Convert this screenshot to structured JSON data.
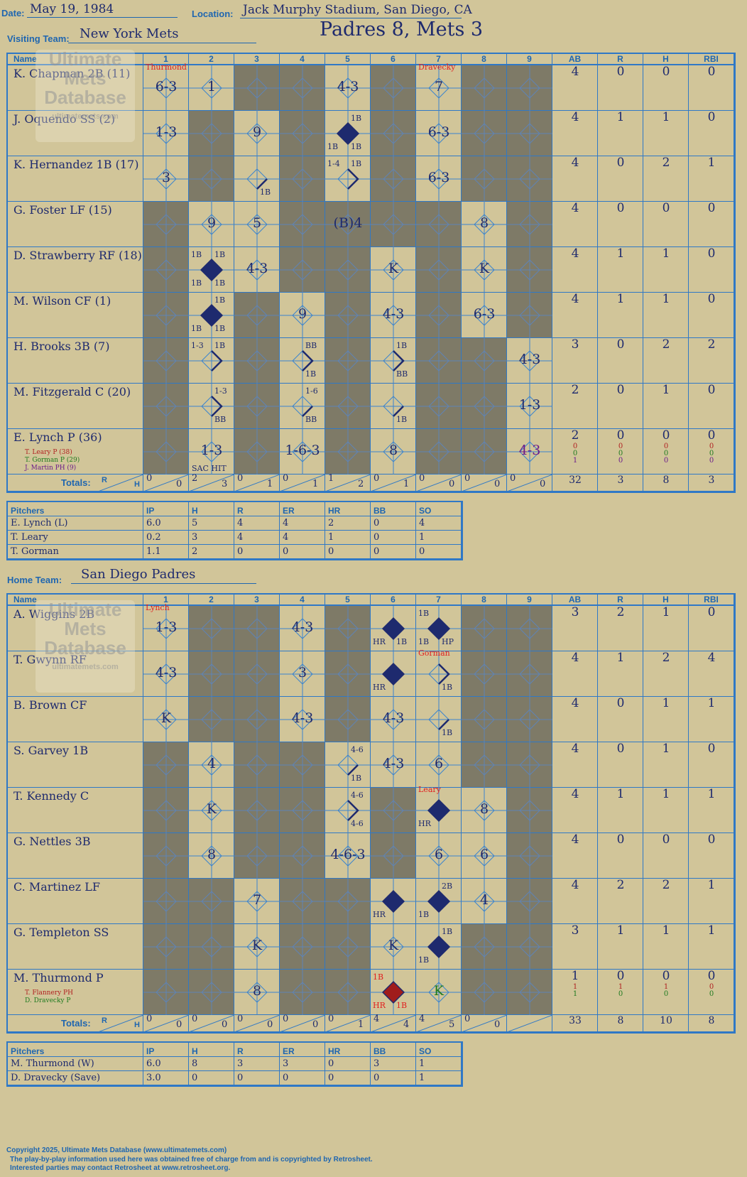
{
  "header": {
    "date_label": "Date:",
    "date": "May 19, 1984",
    "location_label": "Location:",
    "location": "Jack Murphy Stadium, San Diego, CA",
    "visiting_label": "Visiting Team:",
    "visiting_team": "New York Mets",
    "score_title": "Padres 8, Mets 3",
    "home_label": "Home Team:",
    "home_team": "San Diego Padres"
  },
  "columns": {
    "name": "Name",
    "innings": [
      "1",
      "2",
      "3",
      "4",
      "5",
      "6",
      "7",
      "8",
      "9"
    ],
    "ab": "AB",
    "r": "R",
    "h": "H",
    "rbi": "RBI"
  },
  "totals_label": "Totals:",
  "rh_r": "R",
  "rh_h": "H",
  "visitors": {
    "rows": [
      {
        "name": "K. Chapman 2B (11)",
        "shade": [
          0,
          0,
          1,
          1,
          0,
          1,
          0,
          1,
          1
        ],
        "ab": "4",
        "r": "0",
        "h": "0",
        "rbi": "0"
      },
      {
        "name": "J. Oquendo SS (2)",
        "shade": [
          0,
          1,
          0,
          1,
          0,
          1,
          0,
          1,
          1
        ],
        "ab": "4",
        "r": "1",
        "h": "1",
        "rbi": "0"
      },
      {
        "name": "K. Hernandez 1B (17)",
        "shade": [
          0,
          1,
          0,
          1,
          0,
          1,
          0,
          1,
          1
        ],
        "ab": "4",
        "r": "0",
        "h": "2",
        "rbi": "1"
      },
      {
        "name": "G. Foster LF (15)",
        "shade": [
          1,
          0,
          0,
          1,
          1,
          1,
          1,
          0,
          1
        ],
        "ab": "4",
        "r": "0",
        "h": "0",
        "rbi": "0"
      },
      {
        "name": "D. Strawberry RF (18)",
        "shade": [
          1,
          0,
          0,
          1,
          1,
          0,
          1,
          0,
          1
        ],
        "ab": "4",
        "r": "1",
        "h": "1",
        "rbi": "0"
      },
      {
        "name": "M. Wilson CF (1)",
        "shade": [
          1,
          0,
          1,
          0,
          1,
          0,
          1,
          0,
          1
        ],
        "ab": "4",
        "r": "1",
        "h": "1",
        "rbi": "0"
      },
      {
        "name": "H. Brooks 3B (7)",
        "shade": [
          1,
          0,
          1,
          0,
          1,
          0,
          1,
          1,
          0
        ],
        "ab": "3",
        "r": "0",
        "h": "2",
        "rbi": "2"
      },
      {
        "name": "M. Fitzgerald C (20)",
        "shade": [
          1,
          0,
          1,
          0,
          1,
          0,
          1,
          1,
          0
        ],
        "ab": "2",
        "r": "0",
        "h": "1",
        "rbi": "0"
      },
      {
        "name": "E. Lynch P (36)",
        "shade": [
          1,
          0,
          1,
          0,
          1,
          0,
          1,
          1,
          0
        ],
        "ab": "2",
        "r": "0",
        "h": "0",
        "rbi": "0",
        "subs": [
          {
            "text": "T. Leary P (38)",
            "color": "#b02020",
            "ab": "0",
            "r": "0",
            "h": "0",
            "rbi": "0"
          },
          {
            "text": "T. Gorman P (29)",
            "color": "#1f7a1f",
            "ab": "0",
            "r": "0",
            "h": "0",
            "rbi": "0"
          },
          {
            "text": "J. Martin PH (9)",
            "color": "#6a1b8a",
            "ab": "1",
            "r": "0",
            "h": "0",
            "rbi": "0"
          }
        ]
      }
    ],
    "plays": [
      {
        "row": 0,
        "inn": 0,
        "text": "6-3"
      },
      {
        "row": 0,
        "inn": 1,
        "text": "1"
      },
      {
        "row": 0,
        "inn": 4,
        "text": "4-3"
      },
      {
        "row": 0,
        "inn": 6,
        "text": "7"
      },
      {
        "row": 1,
        "inn": 0,
        "text": "1-3"
      },
      {
        "row": 1,
        "inn": 2,
        "text": "9"
      },
      {
        "row": 1,
        "inn": 6,
        "text": "6-3"
      },
      {
        "row": 2,
        "inn": 0,
        "text": "3"
      },
      {
        "row": 2,
        "inn": 6,
        "text": "6-3"
      },
      {
        "row": 3,
        "inn": 1,
        "text": "9"
      },
      {
        "row": 3,
        "inn": 2,
        "text": "5"
      },
      {
        "row": 3,
        "inn": 4,
        "text": "(B)4"
      },
      {
        "row": 3,
        "inn": 7,
        "text": "8"
      },
      {
        "row": 4,
        "inn": 2,
        "text": "4-3"
      },
      {
        "row": 4,
        "inn": 5,
        "text": "K"
      },
      {
        "row": 4,
        "inn": 7,
        "text": "K"
      },
      {
        "row": 5,
        "inn": 3,
        "text": "9"
      },
      {
        "row": 5,
        "inn": 5,
        "text": "4-3"
      },
      {
        "row": 5,
        "inn": 7,
        "text": "6-3"
      },
      {
        "row": 6,
        "inn": 8,
        "text": "4-3"
      },
      {
        "row": 7,
        "inn": 8,
        "text": "1-3"
      },
      {
        "row": 8,
        "inn": 1,
        "text": "1-3"
      },
      {
        "row": 8,
        "inn": 3,
        "text": "1-6-3"
      },
      {
        "row": 8,
        "inn": 5,
        "text": "8"
      },
      {
        "row": 8,
        "inn": 8,
        "text": "4-3",
        "color": "#6a1b8a"
      }
    ],
    "diamonds": [
      {
        "row": 1,
        "inn": 4,
        "fill": "#1e2a6e"
      },
      {
        "row": 4,
        "inn": 1,
        "fill": "#1e2a6e"
      },
      {
        "row": 5,
        "inn": 1,
        "fill": "#1e2a6e"
      }
    ],
    "paths": [
      {
        "row": 2,
        "inn": 2,
        "seg": "first"
      },
      {
        "row": 2,
        "inn": 4,
        "seg": "second"
      },
      {
        "row": 6,
        "inn": 1,
        "seg": "second"
      },
      {
        "row": 6,
        "inn": 3,
        "seg": "second"
      },
      {
        "row": 6,
        "inn": 5,
        "seg": "second"
      },
      {
        "row": 7,
        "inn": 1,
        "seg": "second"
      },
      {
        "row": 7,
        "inn": 3,
        "seg": "first"
      },
      {
        "row": 7,
        "inn": 5,
        "seg": "first"
      }
    ],
    "marks": [
      {
        "row": 0,
        "inn": 0,
        "pos": "top",
        "text": "Thurmond",
        "red": true
      },
      {
        "row": 0,
        "inn": 6,
        "pos": "top",
        "text": "Dravecky",
        "red": true
      },
      {
        "row": 1,
        "inn": 4,
        "pos": "tr",
        "text": "1B"
      },
      {
        "row": 1,
        "inn": 4,
        "pos": "bl",
        "text": "1B"
      },
      {
        "row": 1,
        "inn": 4,
        "pos": "br",
        "text": "1B"
      },
      {
        "row": 2,
        "inn": 2,
        "pos": "br",
        "text": "1B"
      },
      {
        "row": 2,
        "inn": 4,
        "pos": "tl",
        "text": "1-4"
      },
      {
        "row": 2,
        "inn": 4,
        "pos": "tr",
        "text": "1B"
      },
      {
        "row": 4,
        "inn": 1,
        "pos": "tl",
        "text": "1B"
      },
      {
        "row": 4,
        "inn": 1,
        "pos": "tr",
        "text": "1B"
      },
      {
        "row": 4,
        "inn": 1,
        "pos": "bl",
        "text": "1B"
      },
      {
        "row": 4,
        "inn": 1,
        "pos": "br",
        "text": "1B"
      },
      {
        "row": 5,
        "inn": 1,
        "pos": "tr",
        "text": "1B"
      },
      {
        "row": 5,
        "inn": 1,
        "pos": "bl",
        "text": "1B"
      },
      {
        "row": 5,
        "inn": 1,
        "pos": "br",
        "text": "1B"
      },
      {
        "row": 6,
        "inn": 1,
        "pos": "tl",
        "text": "1-3"
      },
      {
        "row": 6,
        "inn": 1,
        "pos": "tr",
        "text": "1B"
      },
      {
        "row": 6,
        "inn": 3,
        "pos": "tr",
        "text": "BB"
      },
      {
        "row": 6,
        "inn": 3,
        "pos": "br",
        "text": "1B"
      },
      {
        "row": 6,
        "inn": 5,
        "pos": "tr",
        "text": "1B"
      },
      {
        "row": 6,
        "inn": 5,
        "pos": "br",
        "text": "BB"
      },
      {
        "row": 7,
        "inn": 1,
        "pos": "tr",
        "text": "1-3"
      },
      {
        "row": 7,
        "inn": 1,
        "pos": "br",
        "text": "BB"
      },
      {
        "row": 7,
        "inn": 3,
        "pos": "tr",
        "text": "1-6"
      },
      {
        "row": 7,
        "inn": 3,
        "pos": "br",
        "text": "BB"
      },
      {
        "row": 7,
        "inn": 5,
        "pos": "br",
        "text": "1B"
      },
      {
        "row": 8,
        "inn": 1,
        "pos": "bot",
        "text": "SAC HIT"
      }
    ],
    "totals": [
      {
        "r": "0",
        "h": "0"
      },
      {
        "r": "2",
        "h": "3"
      },
      {
        "r": "0",
        "h": "1"
      },
      {
        "r": "0",
        "h": "1"
      },
      {
        "r": "1",
        "h": "2"
      },
      {
        "r": "0",
        "h": "1"
      },
      {
        "r": "0",
        "h": "0"
      },
      {
        "r": "0",
        "h": "0"
      },
      {
        "r": "0",
        "h": "0"
      }
    ],
    "total_ab": "32",
    "total_r": "3",
    "total_h": "8",
    "total_rbi": "3"
  },
  "home": {
    "rows": [
      {
        "name": "A. Wiggins 2B",
        "shade": [
          0,
          1,
          1,
          0,
          1,
          0,
          0,
          1,
          1
        ],
        "ab": "3",
        "r": "2",
        "h": "1",
        "rbi": "0"
      },
      {
        "name": "T. Gwynn RF",
        "shade": [
          0,
          1,
          1,
          0,
          1,
          0,
          0,
          1,
          1
        ],
        "ab": "4",
        "r": "1",
        "h": "2",
        "rbi": "4"
      },
      {
        "name": "B. Brown CF",
        "shade": [
          0,
          1,
          1,
          0,
          1,
          0,
          0,
          1,
          1
        ],
        "ab": "4",
        "r": "0",
        "h": "1",
        "rbi": "1"
      },
      {
        "name": "S. Garvey 1B",
        "shade": [
          1,
          0,
          1,
          1,
          0,
          0,
          0,
          1,
          1
        ],
        "ab": "4",
        "r": "0",
        "h": "1",
        "rbi": "0"
      },
      {
        "name": "T. Kennedy C",
        "shade": [
          1,
          0,
          1,
          1,
          0,
          1,
          0,
          0,
          1
        ],
        "ab": "4",
        "r": "1",
        "h": "1",
        "rbi": "1"
      },
      {
        "name": "G. Nettles 3B",
        "shade": [
          1,
          0,
          1,
          1,
          0,
          1,
          0,
          0,
          1
        ],
        "ab": "4",
        "r": "0",
        "h": "0",
        "rbi": "0"
      },
      {
        "name": "C. Martinez LF",
        "shade": [
          1,
          1,
          0,
          1,
          1,
          0,
          0,
          0,
          1
        ],
        "ab": "4",
        "r": "2",
        "h": "2",
        "rbi": "1"
      },
      {
        "name": "G. Templeton SS",
        "shade": [
          1,
          1,
          0,
          1,
          1,
          0,
          0,
          1,
          1
        ],
        "ab": "3",
        "r": "1",
        "h": "1",
        "rbi": "1"
      },
      {
        "name": "M. Thurmond P",
        "shade": [
          1,
          1,
          0,
          1,
          1,
          0,
          0,
          1,
          1
        ],
        "ab": "1",
        "r": "0",
        "h": "0",
        "rbi": "0",
        "subs": [
          {
            "text": "T. Flannery PH",
            "color": "#b02020",
            "ab": "1",
            "r": "1",
            "h": "1",
            "rbi": "0"
          },
          {
            "text": "D. Dravecky P",
            "color": "#1f7a1f",
            "ab": "1",
            "r": "0",
            "h": "0",
            "rbi": "0"
          }
        ]
      }
    ],
    "plays": [
      {
        "row": 0,
        "inn": 0,
        "text": "1-3"
      },
      {
        "row": 0,
        "inn": 3,
        "text": "4-3"
      },
      {
        "row": 1,
        "inn": 0,
        "text": "4-3"
      },
      {
        "row": 1,
        "inn": 3,
        "text": "3"
      },
      {
        "row": 2,
        "inn": 0,
        "text": "K"
      },
      {
        "row": 2,
        "inn": 3,
        "text": "4-3"
      },
      {
        "row": 2,
        "inn": 5,
        "text": "4-3"
      },
      {
        "row": 3,
        "inn": 1,
        "text": "4"
      },
      {
        "row": 3,
        "inn": 5,
        "text": "4-3"
      },
      {
        "row": 3,
        "inn": 6,
        "text": "6"
      },
      {
        "row": 4,
        "inn": 1,
        "text": "K"
      },
      {
        "row": 4,
        "inn": 7,
        "text": "8"
      },
      {
        "row": 5,
        "inn": 1,
        "text": "8"
      },
      {
        "row": 5,
        "inn": 4,
        "text": "4-6-3"
      },
      {
        "row": 5,
        "inn": 6,
        "text": "6"
      },
      {
        "row": 5,
        "inn": 7,
        "text": "6"
      },
      {
        "row": 6,
        "inn": 2,
        "text": "7"
      },
      {
        "row": 6,
        "inn": 7,
        "text": "4"
      },
      {
        "row": 7,
        "inn": 2,
        "text": "K"
      },
      {
        "row": 7,
        "inn": 5,
        "text": "K"
      },
      {
        "row": 8,
        "inn": 2,
        "text": "8"
      },
      {
        "row": 8,
        "inn": 6,
        "text": "K",
        "color": "#1f7a1f"
      }
    ],
    "diamonds": [
      {
        "row": 0,
        "inn": 5,
        "fill": "#1e2a6e"
      },
      {
        "row": 0,
        "inn": 6,
        "fill": "#1e2a6e"
      },
      {
        "row": 1,
        "inn": 5,
        "fill": "#1e2a6e"
      },
      {
        "row": 4,
        "inn": 6,
        "fill": "#1e2a6e"
      },
      {
        "row": 6,
        "inn": 5,
        "fill": "#1e2a6e"
      },
      {
        "row": 6,
        "inn": 6,
        "fill": "#1e2a6e"
      },
      {
        "row": 7,
        "inn": 6,
        "fill": "#1e2a6e"
      },
      {
        "row": 8,
        "inn": 5,
        "fill": "#a01c1c"
      }
    ],
    "paths": [
      {
        "row": 1,
        "inn": 6,
        "seg": "second"
      },
      {
        "row": 2,
        "inn": 6,
        "seg": "first"
      },
      {
        "row": 3,
        "inn": 4,
        "seg": "first"
      },
      {
        "row": 4,
        "inn": 4,
        "seg": "second"
      }
    ],
    "marks": [
      {
        "row": 0,
        "inn": 0,
        "pos": "top",
        "text": "Lynch",
        "red": true
      },
      {
        "row": 0,
        "inn": 5,
        "pos": "bl",
        "text": "HR"
      },
      {
        "row": 0,
        "inn": 5,
        "pos": "br",
        "text": "1B"
      },
      {
        "row": 0,
        "inn": 6,
        "pos": "tl",
        "text": "1B"
      },
      {
        "row": 0,
        "inn": 6,
        "pos": "bl",
        "text": "1B"
      },
      {
        "row": 0,
        "inn": 6,
        "pos": "br",
        "text": "HP"
      },
      {
        "row": 1,
        "inn": 5,
        "pos": "bl",
        "text": "HR"
      },
      {
        "row": 1,
        "inn": 6,
        "pos": "top",
        "text": "Gorman",
        "red": true
      },
      {
        "row": 1,
        "inn": 6,
        "pos": "br",
        "text": "1B"
      },
      {
        "row": 2,
        "inn": 6,
        "pos": "br",
        "text": "1B"
      },
      {
        "row": 3,
        "inn": 4,
        "pos": "tr",
        "text": "4-6"
      },
      {
        "row": 3,
        "inn": 4,
        "pos": "br",
        "text": "1B"
      },
      {
        "row": 4,
        "inn": 4,
        "pos": "tr",
        "text": "4-6"
      },
      {
        "row": 4,
        "inn": 4,
        "pos": "br",
        "text": "4-6"
      },
      {
        "row": 4,
        "inn": 6,
        "pos": "top",
        "text": "Leary",
        "red": true
      },
      {
        "row": 4,
        "inn": 6,
        "pos": "bl",
        "text": "HR"
      },
      {
        "row": 6,
        "inn": 5,
        "pos": "bl",
        "text": "HR"
      },
      {
        "row": 6,
        "inn": 6,
        "pos": "tr",
        "text": "2B"
      },
      {
        "row": 6,
        "inn": 6,
        "pos": "bl",
        "text": "1B"
      },
      {
        "row": 7,
        "inn": 6,
        "pos": "tr",
        "text": "1B"
      },
      {
        "row": 7,
        "inn": 6,
        "pos": "bl",
        "text": "1B"
      },
      {
        "row": 8,
        "inn": 5,
        "pos": "tl",
        "text": "1B",
        "red": true
      },
      {
        "row": 8,
        "inn": 5,
        "pos": "bl",
        "text": "HR",
        "red": true
      },
      {
        "row": 8,
        "inn": 5,
        "pos": "br",
        "text": "1B",
        "red": true
      }
    ],
    "totals": [
      {
        "r": "0",
        "h": "0"
      },
      {
        "r": "0",
        "h": "0"
      },
      {
        "r": "0",
        "h": "0"
      },
      {
        "r": "0",
        "h": "0"
      },
      {
        "r": "0",
        "h": "1"
      },
      {
        "r": "4",
        "h": "4"
      },
      {
        "r": "4",
        "h": "5"
      },
      {
        "r": "0",
        "h": "0"
      },
      {
        "r": "",
        "h": ""
      }
    ],
    "total_ab": "33",
    "total_r": "8",
    "total_h": "10",
    "total_rbi": "8"
  },
  "pitching_columns": [
    "Pitchers",
    "IP",
    "H",
    "R",
    "ER",
    "HR",
    "BB",
    "SO"
  ],
  "visitor_pitchers": [
    [
      "E. Lynch (L)",
      "6.0",
      "5",
      "4",
      "4",
      "2",
      "0",
      "4"
    ],
    [
      "T. Leary",
      "0.2",
      "3",
      "4",
      "4",
      "1",
      "0",
      "1"
    ],
    [
      "T. Gorman",
      "1.1",
      "2",
      "0",
      "0",
      "0",
      "0",
      "0"
    ]
  ],
  "home_pitchers": [
    [
      "M. Thurmond (W)",
      "6.0",
      "8",
      "3",
      "3",
      "0",
      "3",
      "1"
    ],
    [
      "D. Dravecky (Save)",
      "3.0",
      "0",
      "0",
      "0",
      "0",
      "0",
      "1"
    ]
  ],
  "watermark": [
    "Ultimate",
    "Mets",
    "Database",
    "ultimatemets.com"
  ],
  "footer": {
    "line1": "Copyright 2025, Ultimate Mets Database (www.ultimatemets.com)",
    "line2": "The play-by-play information used here was obtained free of charge from and is copyrighted by Retrosheet.",
    "line3": "Interested parties may contact Retrosheet at www.retrosheet.org."
  }
}
